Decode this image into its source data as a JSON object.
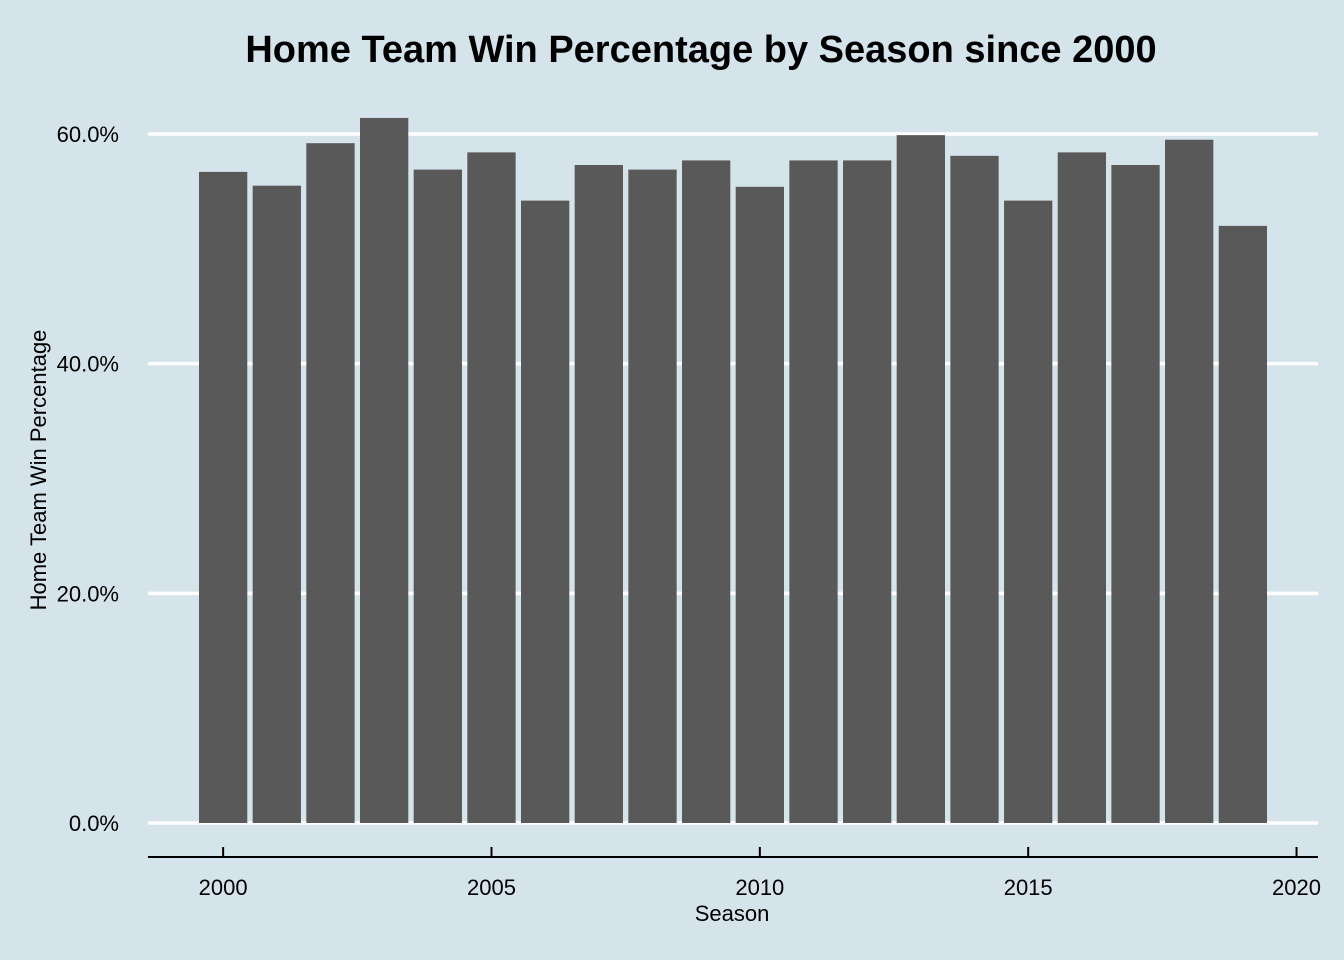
{
  "chart_data": {
    "type": "bar",
    "title": "Home Team Win Percentage by Season since 2000",
    "xlabel": "Season",
    "ylabel": "Home Team Win Percentage",
    "x": [
      2000,
      2001,
      2002,
      2003,
      2004,
      2005,
      2006,
      2007,
      2008,
      2009,
      2010,
      2011,
      2012,
      2013,
      2014,
      2015,
      2016,
      2017,
      2018,
      2019
    ],
    "values": [
      0.567,
      0.555,
      0.592,
      0.614,
      0.569,
      0.584,
      0.542,
      0.573,
      0.569,
      0.577,
      0.554,
      0.577,
      0.577,
      0.599,
      0.581,
      0.542,
      0.584,
      0.573,
      0.595,
      0.52
    ],
    "xlim": [
      1998.6,
      2020.4
    ],
    "ylim": [
      0,
      0.62
    ],
    "x_ticks": [
      2000,
      2005,
      2010,
      2015,
      2020
    ],
    "x_tick_labels": [
      "2000",
      "2005",
      "2010",
      "2015",
      "2020"
    ],
    "y_ticks": [
      0,
      0.2,
      0.4,
      0.6
    ],
    "y_tick_labels": [
      "0.0%",
      "20.0%",
      "40.0%",
      "60.0%"
    ],
    "grid": "horizontal",
    "legend": "none",
    "colors": {
      "background": "#d5e4eb",
      "bar": "#595959",
      "grid": "#ffffff",
      "axis": "#000000"
    }
  }
}
